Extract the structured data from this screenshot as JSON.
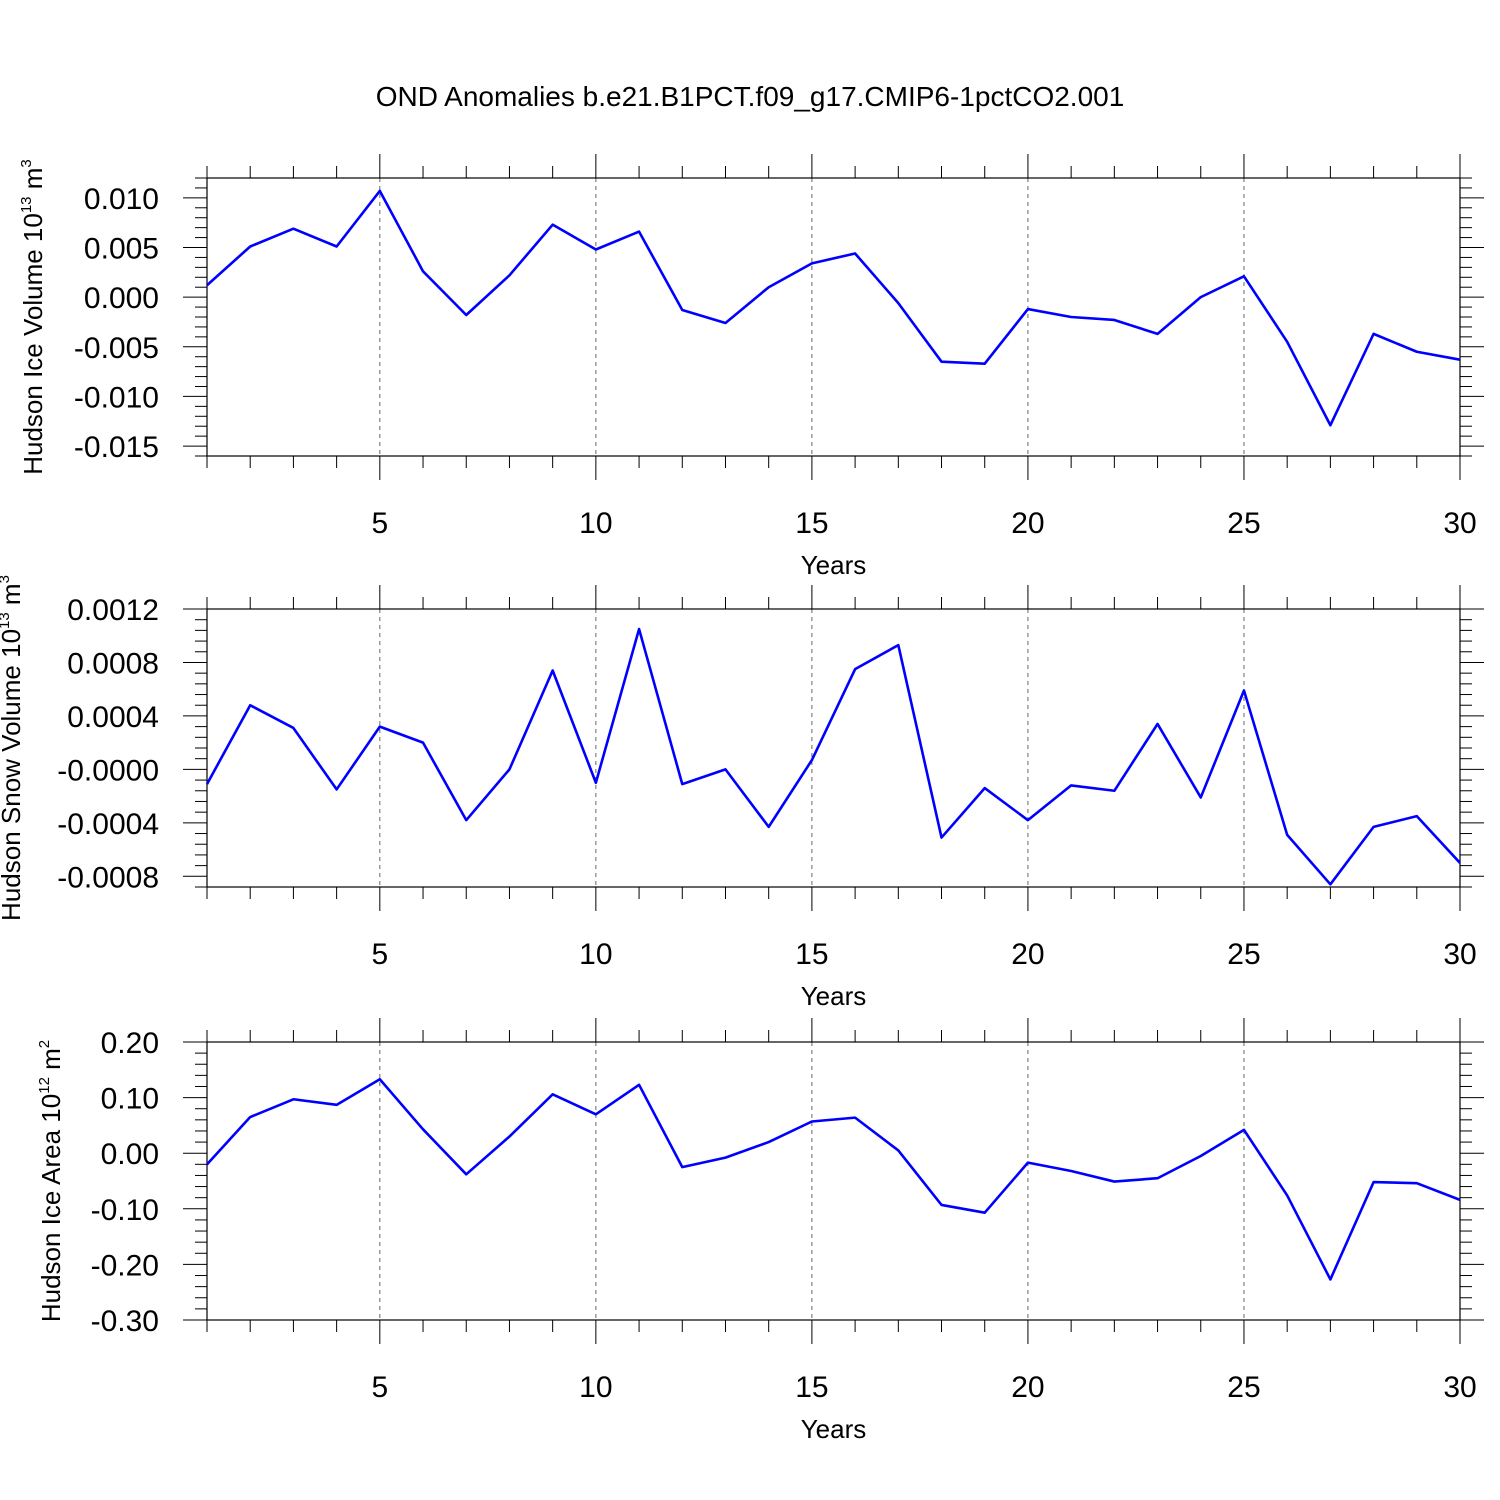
{
  "figure": {
    "title": "OND Anomalies b.e21.B1PCT.f09_g17.CMIP6-1pctCO2.001",
    "line_color": "#0000ff",
    "grid_style": "dashed vertical lines at major x ticks"
  },
  "chart_data": [
    {
      "type": "line",
      "title": "",
      "xlabel": "Years",
      "ylabel": {
        "text": "Hudson Ice Volume 10",
        "exponent": "13",
        "unit": " m",
        "unit_exponent": "3"
      },
      "xlim": [
        1,
        30
      ],
      "ylim": [
        -0.016,
        0.012
      ],
      "xticks": [
        5,
        10,
        15,
        20,
        25,
        30
      ],
      "yticks": [
        0.01,
        0.005,
        0.0,
        -0.005,
        -0.01,
        -0.015
      ],
      "ytick_labels": [
        "0.010",
        "0.005",
        "0.000",
        "-0.005",
        "-0.010",
        "-0.015"
      ],
      "x": [
        1,
        2,
        3,
        4,
        5,
        6,
        7,
        8,
        9,
        10,
        11,
        12,
        13,
        14,
        15,
        16,
        17,
        18,
        19,
        20,
        21,
        22,
        23,
        24,
        25,
        26,
        27,
        28,
        29,
        30
      ],
      "series": [
        {
          "values": [
            0.0012,
            0.0051,
            0.0069,
            0.0051,
            0.0107,
            0.0026,
            -0.0018,
            0.0022,
            0.0073,
            0.0048,
            0.0066,
            -0.0013,
            -0.0026,
            0.001,
            0.0034,
            0.0044,
            -0.0006,
            -0.0065,
            -0.0067,
            -0.0012,
            -0.002,
            -0.0023,
            -0.0037,
            0.0,
            0.0021,
            -0.0045,
            -0.0129,
            -0.0037,
            -0.0055,
            -0.0063
          ]
        }
      ]
    },
    {
      "type": "line",
      "title": "",
      "xlabel": "Years",
      "ylabel": {
        "text": "Hudson Snow Volume 10",
        "exponent": "13",
        "unit": " m",
        "unit_exponent": "3"
      },
      "xlim": [
        1,
        30
      ],
      "ylim": [
        -0.00088,
        0.0012
      ],
      "xticks": [
        5,
        10,
        15,
        20,
        25,
        30
      ],
      "yticks": [
        0.0012,
        0.0008,
        0.0004,
        0.0,
        -0.0004,
        -0.0008
      ],
      "ytick_labels": [
        "0.0012",
        "0.0008",
        "0.0004",
        "-0.0000",
        "-0.0004",
        "-0.0008"
      ],
      "x": [
        1,
        2,
        3,
        4,
        5,
        6,
        7,
        8,
        9,
        10,
        11,
        12,
        13,
        14,
        15,
        16,
        17,
        18,
        19,
        20,
        21,
        22,
        23,
        24,
        25,
        26,
        27,
        28,
        29,
        30
      ],
      "series": [
        {
          "values": [
            -0.00011,
            0.00048,
            0.00031,
            -0.00015,
            0.00032,
            0.0002,
            -0.00038,
            -0.0,
            0.00074,
            -0.0001,
            0.00105,
            -0.00011,
            0.0,
            -0.00043,
            7e-05,
            0.00075,
            0.00093,
            -0.00051,
            -0.00014,
            -0.00038,
            -0.00012,
            -0.00016,
            0.00034,
            -0.00021,
            0.00059,
            -0.00049,
            -0.00086,
            -0.00043,
            -0.00035,
            -0.0007
          ]
        }
      ]
    },
    {
      "type": "line",
      "title": "",
      "xlabel": "Years",
      "ylabel": {
        "text": "Hudson Ice Area 10",
        "exponent": "12",
        "unit": " m",
        "unit_exponent": "2"
      },
      "xlim": [
        1,
        30
      ],
      "ylim": [
        -0.3,
        0.2
      ],
      "xticks": [
        5,
        10,
        15,
        20,
        25,
        30
      ],
      "yticks": [
        0.2,
        0.1,
        0.0,
        -0.1,
        -0.2,
        -0.3
      ],
      "ytick_labels": [
        "0.20",
        "0.10",
        "0.00",
        "-0.10",
        "-0.20",
        "-0.30"
      ],
      "x": [
        1,
        2,
        3,
        4,
        5,
        6,
        7,
        8,
        9,
        10,
        11,
        12,
        13,
        14,
        15,
        16,
        17,
        18,
        19,
        20,
        21,
        22,
        23,
        24,
        25,
        26,
        27,
        28,
        29,
        30
      ],
      "series": [
        {
          "values": [
            -0.02,
            0.065,
            0.097,
            0.087,
            0.133,
            0.043,
            -0.038,
            0.03,
            0.106,
            0.07,
            0.123,
            -0.025,
            -0.008,
            0.02,
            0.057,
            0.064,
            0.005,
            -0.093,
            -0.107,
            -0.017,
            -0.032,
            -0.051,
            -0.045,
            -0.005,
            0.042,
            -0.076,
            -0.227,
            -0.052,
            -0.054,
            -0.084
          ]
        }
      ]
    }
  ]
}
